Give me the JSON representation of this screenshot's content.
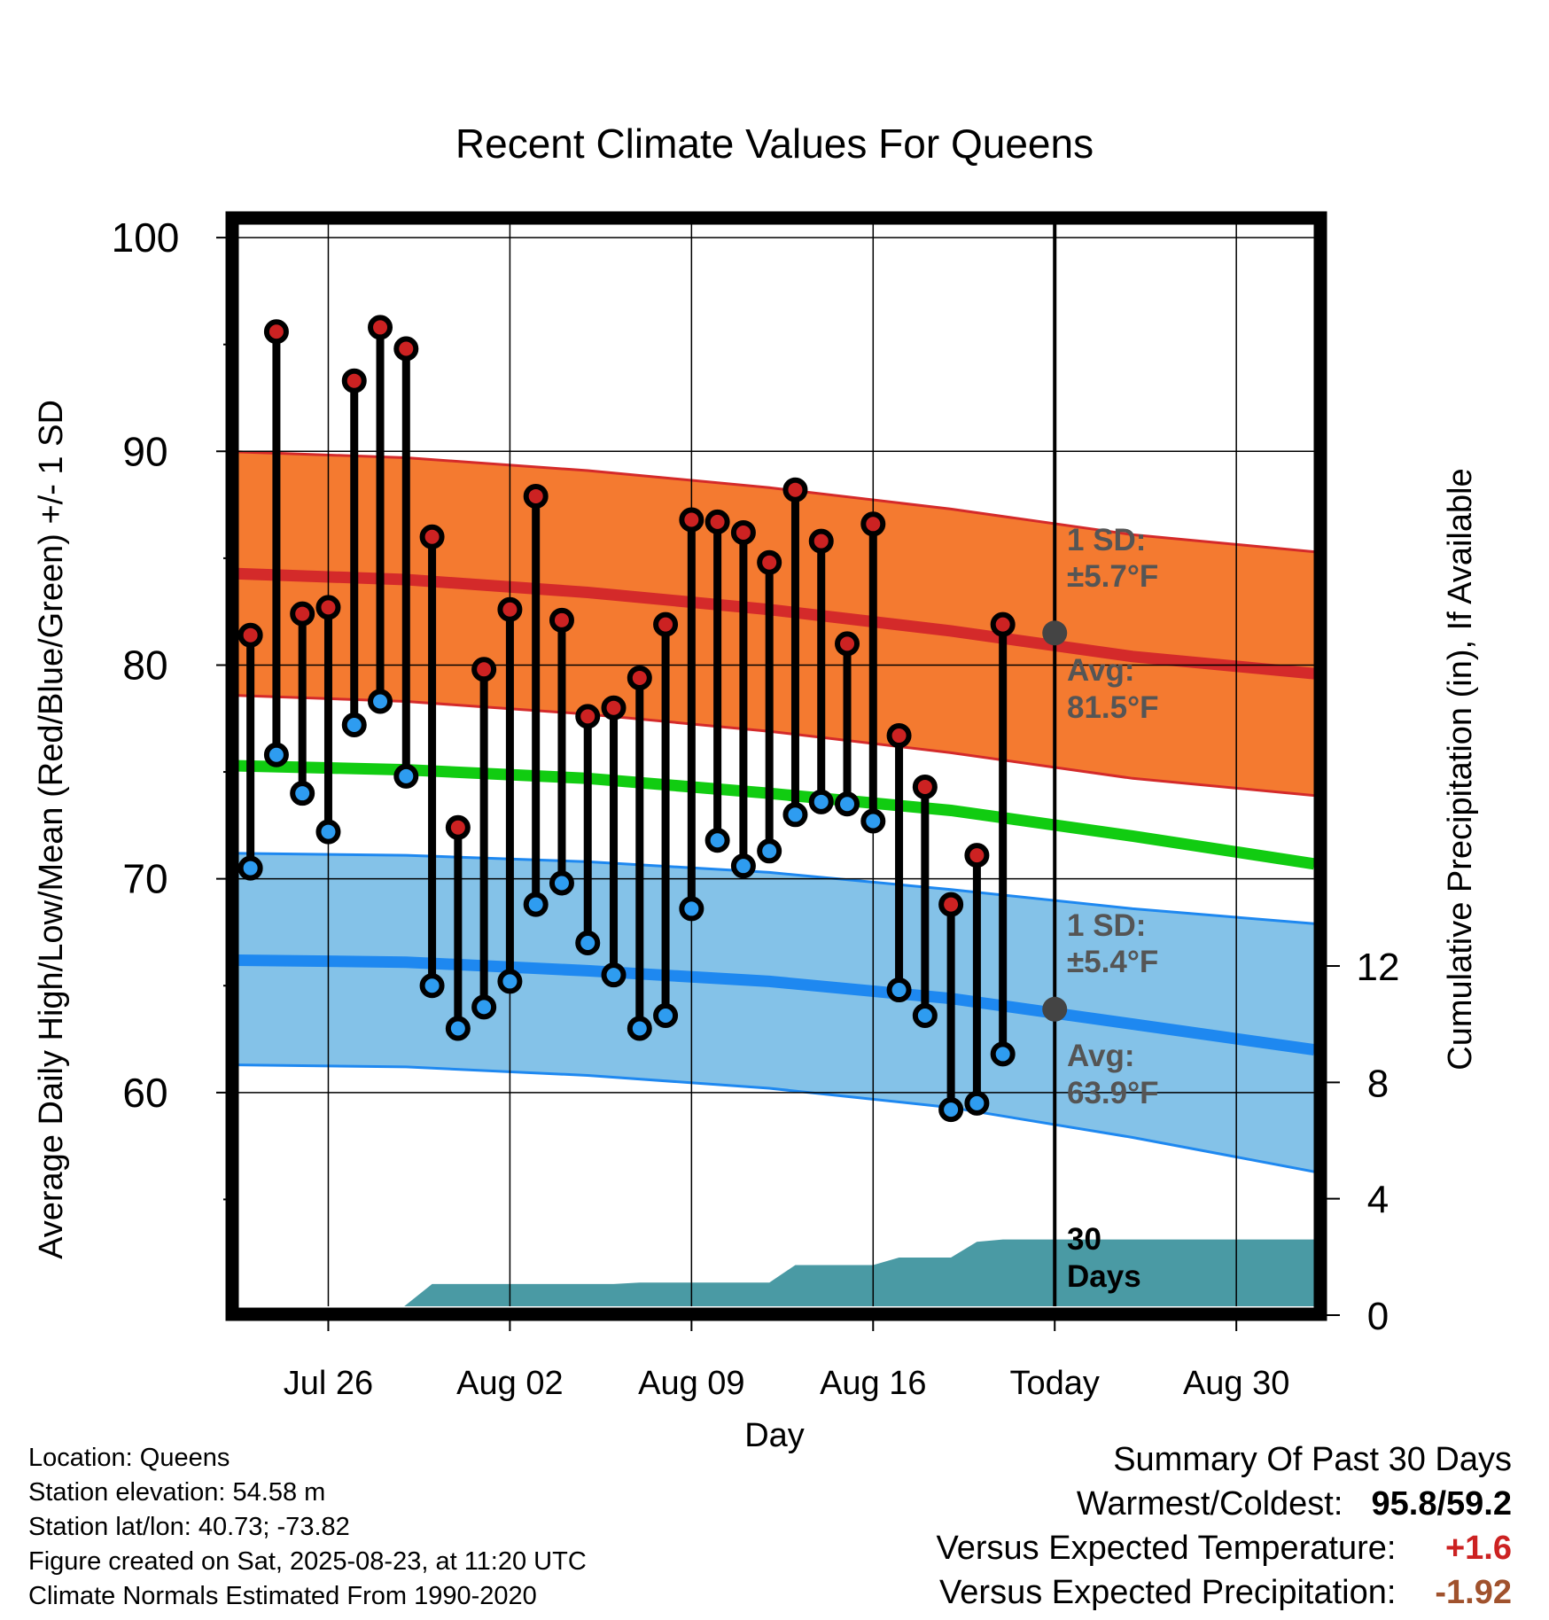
{
  "chart_data": {
    "type": "line",
    "title": "Recent Climate Values For Queens",
    "xlabel": "Day",
    "ylabel": "Average Daily High/Low/Mean (Red/Blue/Green) +/- 1 SD",
    "y2label": "Cumulative Precipitation (in), If Available",
    "ylim": [
      50,
      101
    ],
    "y2lim": [
      0,
      20
    ],
    "xlim": [
      "2025-07-22T12:00",
      "2025-09-02"
    ],
    "x_ticks": [
      {
        "date": "2025-07-26",
        "label": "Jul 26"
      },
      {
        "date": "2025-08-02",
        "label": "Aug 02"
      },
      {
        "date": "2025-08-09",
        "label": "Aug 09"
      },
      {
        "date": "2025-08-16",
        "label": "Aug 16"
      },
      {
        "date": "2025-08-23",
        "label": "Today"
      },
      {
        "date": "2025-08-30",
        "label": "Aug 30"
      }
    ],
    "y_ticks": [
      60,
      70,
      80,
      90,
      100
    ],
    "y2_ticks": [
      0,
      4,
      8,
      12
    ],
    "grid": true,
    "dates": [
      "2025-07-23",
      "2025-07-24",
      "2025-07-25",
      "2025-07-26",
      "2025-07-27",
      "2025-07-28",
      "2025-07-29",
      "2025-07-30",
      "2025-07-31",
      "2025-08-01",
      "2025-08-02",
      "2025-08-03",
      "2025-08-04",
      "2025-08-05",
      "2025-08-06",
      "2025-08-07",
      "2025-08-08",
      "2025-08-09",
      "2025-08-10",
      "2025-08-11",
      "2025-08-12",
      "2025-08-13",
      "2025-08-14",
      "2025-08-15",
      "2025-08-16",
      "2025-08-17",
      "2025-08-18",
      "2025-08-19",
      "2025-08-20",
      "2025-08-21",
      "2025-08-22"
    ],
    "series": [
      {
        "name": "High",
        "color": "#cc2222",
        "values": [
          81.4,
          95.6,
          82.4,
          82.7,
          93.3,
          95.8,
          94.8,
          86.0,
          72.4,
          79.8,
          82.6,
          87.9,
          82.1,
          77.6,
          78.0,
          79.4,
          81.9,
          86.8,
          86.7,
          86.2,
          84.8,
          88.2,
          85.8,
          81.0,
          86.6,
          76.7,
          74.3,
          68.8,
          71.1,
          81.9,
          null
        ]
      },
      {
        "name": "Low",
        "color": "#2e9cf0",
        "values": [
          70.5,
          75.8,
          74.0,
          72.2,
          77.2,
          78.3,
          74.8,
          65.0,
          63.0,
          64.0,
          65.2,
          68.8,
          69.8,
          67.0,
          65.5,
          63.0,
          63.6,
          68.6,
          71.8,
          70.6,
          71.3,
          73.0,
          73.6,
          73.5,
          72.7,
          64.8,
          63.6,
          59.2,
          59.5,
          61.8,
          null
        ]
      }
    ],
    "normals": {
      "dates": [
        "2025-07-22",
        "2025-07-29",
        "2025-08-05",
        "2025-08-12",
        "2025-08-19",
        "2025-08-26",
        "2025-09-02"
      ],
      "high_avg": [
        84.3,
        84.0,
        83.4,
        82.6,
        81.6,
        80.4,
        79.6
      ],
      "high_sd_upper": [
        90.0,
        89.7,
        89.1,
        88.3,
        87.3,
        86.1,
        85.3
      ],
      "high_sd_lower": [
        78.6,
        78.3,
        77.7,
        76.9,
        75.9,
        74.7,
        73.9
      ],
      "low_avg": [
        66.2,
        66.1,
        65.7,
        65.2,
        64.4,
        63.2,
        62.0
      ],
      "low_sd_upper": [
        71.2,
        71.1,
        70.8,
        70.3,
        69.5,
        68.6,
        67.9
      ],
      "low_sd_lower": [
        61.3,
        61.2,
        60.8,
        60.2,
        59.3,
        57.9,
        56.3
      ],
      "mean_avg": [
        75.3,
        75.1,
        74.7,
        74.0,
        73.2,
        72.0,
        70.7
      ],
      "today_date": "2025-08-23",
      "today_high_avg": 81.5,
      "today_low_avg": 63.9,
      "high_sd_label": "1 SD:",
      "high_sd_value": "±5.7°F",
      "high_avg_label": "Avg:",
      "high_avg_value": "81.5°F",
      "low_sd_label": "1 SD:",
      "low_sd_value": "±5.4°F",
      "low_avg_label": "Avg:",
      "low_avg_value": "63.9°F"
    },
    "precipitation": {
      "color": "#4a9aa4",
      "points": [
        [
          "2025-07-22T12:00",
          0
        ],
        [
          "2025-07-28T12:00",
          0
        ],
        [
          "2025-07-30",
          1.07
        ],
        [
          "2025-08-06",
          1.07
        ],
        [
          "2025-08-07",
          1.12
        ],
        [
          "2025-08-12",
          1.12
        ],
        [
          "2025-08-13",
          1.72
        ],
        [
          "2025-08-15",
          1.72
        ],
        [
          "2025-08-16",
          1.72
        ],
        [
          "2025-08-17",
          1.98
        ],
        [
          "2025-08-19",
          1.98
        ],
        [
          "2025-08-20",
          2.52
        ],
        [
          "2025-08-21",
          2.6
        ],
        [
          "2025-09-02",
          2.6
        ]
      ],
      "label": "30 Days"
    }
  },
  "info": {
    "location": "Location: Queens",
    "elevation": "Station elevation: 54.58 m",
    "latlon": "Station lat/lon: 40.73; -73.82",
    "created": "Figure created on Sat, 2025-08-23, at 11:20 UTC",
    "normals": "Climate Normals Estimated From 1990-2020"
  },
  "summary": {
    "heading": "Summary Of Past 30 Days",
    "warmest_coldest_label": "Warmest/Coldest:",
    "warmest_coldest_value": "95.8/59.2",
    "temp_label": "Versus Expected Temperature:",
    "temp_value": "+1.6",
    "temp_color": "#cc2222",
    "precip_label": "Versus Expected Precipitation:",
    "precip_value": "-1.92",
    "precip_color": "#a0522d"
  }
}
